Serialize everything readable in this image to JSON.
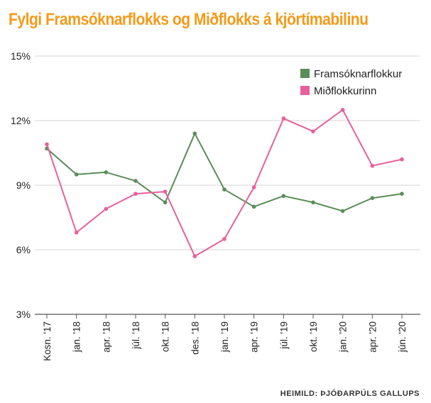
{
  "colors": {
    "title": "#f39b1b",
    "grid": "#d5d5d5",
    "axis": "#555555"
  },
  "chart_data": {
    "type": "line",
    "title": "Fylgi Framsóknarflokks og Miðflokks á kjörtímabilinu",
    "categories": [
      "Kosn. '17",
      "jan. '18",
      "apr. '18",
      "júl. '18",
      "okt. '18",
      "des. '18",
      "jan. '19",
      "apr. '19",
      "júl. '19",
      "okt. '19",
      "jan. '20",
      "apr. '20",
      "jún. '20"
    ],
    "y_ticks": [
      "3%",
      "6%",
      "9%",
      "12%",
      "15%"
    ],
    "ylim": [
      3,
      15
    ],
    "grid": true,
    "legend_position": "top-right",
    "series": [
      {
        "name": "Framsóknarflokkur",
        "color": "#5a8d58",
        "values": [
          10.7,
          9.5,
          9.6,
          9.2,
          8.2,
          11.4,
          8.8,
          8.0,
          8.5,
          8.2,
          7.8,
          8.4,
          8.6
        ]
      },
      {
        "name": "Miðflokkurinn",
        "color": "#e8609a",
        "values": [
          10.9,
          6.8,
          7.9,
          8.6,
          8.7,
          5.7,
          6.5,
          8.9,
          12.1,
          11.5,
          12.5,
          9.9,
          10.2
        ]
      }
    ],
    "source": "HEIMILD: ÞJÓÐARPÚLS GALLUPS"
  }
}
